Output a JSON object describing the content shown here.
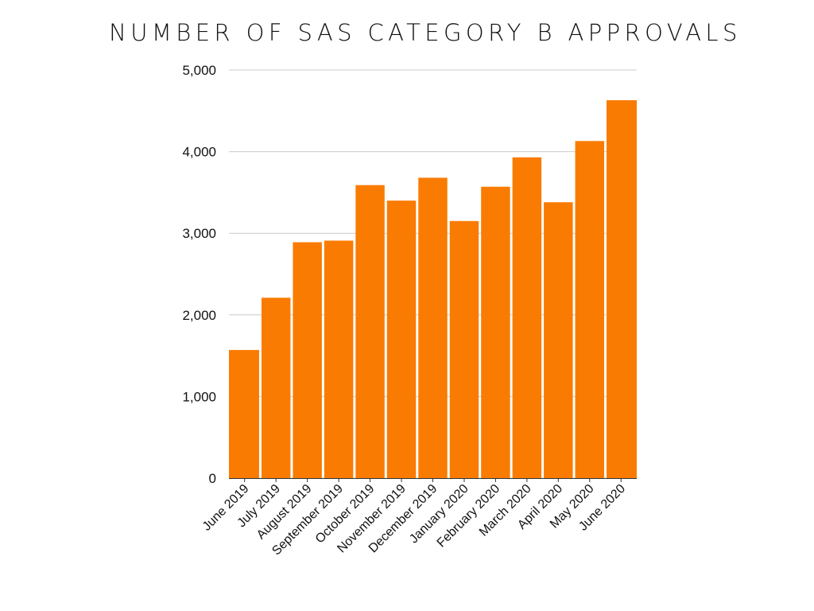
{
  "chart_data": {
    "type": "bar",
    "title": "NUMBER OF SAS CATEGORY B APPROVALS",
    "xlabel": "",
    "ylabel": "",
    "categories": [
      "June 2019",
      "July 2019",
      "August 2019",
      "September 2019",
      "October 2019",
      "November 2019",
      "December 2019",
      "January 2020",
      "February 2020",
      "March 2020",
      "April 2020",
      "May 2020",
      "June 2020"
    ],
    "values": [
      1570,
      2210,
      2890,
      2910,
      3590,
      3400,
      3680,
      3150,
      3570,
      3930,
      3380,
      4130,
      4630
    ],
    "ylim": [
      0,
      5000
    ],
    "yticks": [
      "0",
      "1,000",
      "2,000",
      "3,000",
      "4,000",
      "5,000"
    ],
    "ytick_values": [
      0,
      1000,
      2000,
      3000,
      4000,
      5000
    ],
    "grid": true,
    "legend": "none",
    "bar_color": "#fa7b02",
    "grid_color": "#cccccc"
  }
}
